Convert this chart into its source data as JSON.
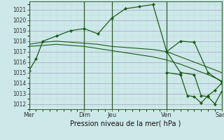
{
  "bg_color": "#cde8e8",
  "grid_color_major": "#aaaacc",
  "grid_color_minor": "#c0dede",
  "line_color": "#1a5c1a",
  "xlabel": "Pression niveau de la mer( hPa )",
  "ylim": [
    1011.5,
    1021.8
  ],
  "yticks": [
    1012,
    1013,
    1014,
    1015,
    1016,
    1017,
    1018,
    1019,
    1020,
    1021
  ],
  "xtick_labels": [
    "Mer",
    "Dim",
    "Jeu",
    "Ven",
    "Sam"
  ],
  "xtick_positions": [
    0,
    4,
    6,
    10,
    14
  ],
  "xlim": [
    0,
    14
  ],
  "vlines_x": [
    0,
    4,
    6,
    10,
    14
  ],
  "series1_x": [
    0,
    0.5,
    1,
    2,
    3,
    4,
    5,
    6,
    7,
    8,
    9,
    10,
    11,
    12,
    13,
    14
  ],
  "series1_y": [
    1015.2,
    1016.3,
    1018.0,
    1018.5,
    1019.0,
    1019.2,
    1018.7,
    1020.2,
    1021.1,
    1021.3,
    1021.5,
    1017.0,
    1018.0,
    1017.9,
    1015.0,
    1014.1
  ],
  "series2_x": [
    0,
    1,
    2,
    3,
    4,
    5,
    6,
    7,
    8,
    9,
    10,
    11,
    12,
    13,
    14
  ],
  "series2_y": [
    1017.7,
    1017.9,
    1018.0,
    1017.9,
    1017.8,
    1017.7,
    1017.5,
    1017.4,
    1017.3,
    1017.2,
    1017.0,
    1016.5,
    1016.0,
    1015.5,
    1015.0
  ],
  "series3_x": [
    0,
    1,
    2,
    3,
    4,
    5,
    6,
    7,
    8,
    9,
    10,
    11,
    12,
    13,
    14
  ],
  "series3_y": [
    1017.5,
    1017.6,
    1017.7,
    1017.6,
    1017.5,
    1017.3,
    1017.1,
    1016.9,
    1016.7,
    1016.5,
    1016.2,
    1015.8,
    1015.3,
    1014.8,
    1014.2
  ],
  "series4_x": [
    10,
    11,
    12,
    12.5,
    13,
    13.5,
    14
  ],
  "series4_y": [
    1017.0,
    1015.0,
    1014.8,
    1012.8,
    1012.7,
    1012.0,
    1013.2
  ],
  "series5_x": [
    10,
    11,
    11.5,
    12,
    12.5,
    13,
    13.5,
    14
  ],
  "series5_y": [
    1015.0,
    1014.8,
    1012.8,
    1012.7,
    1012.1,
    1012.8,
    1013.3,
    1014.0
  ],
  "marker_size": 2.5
}
